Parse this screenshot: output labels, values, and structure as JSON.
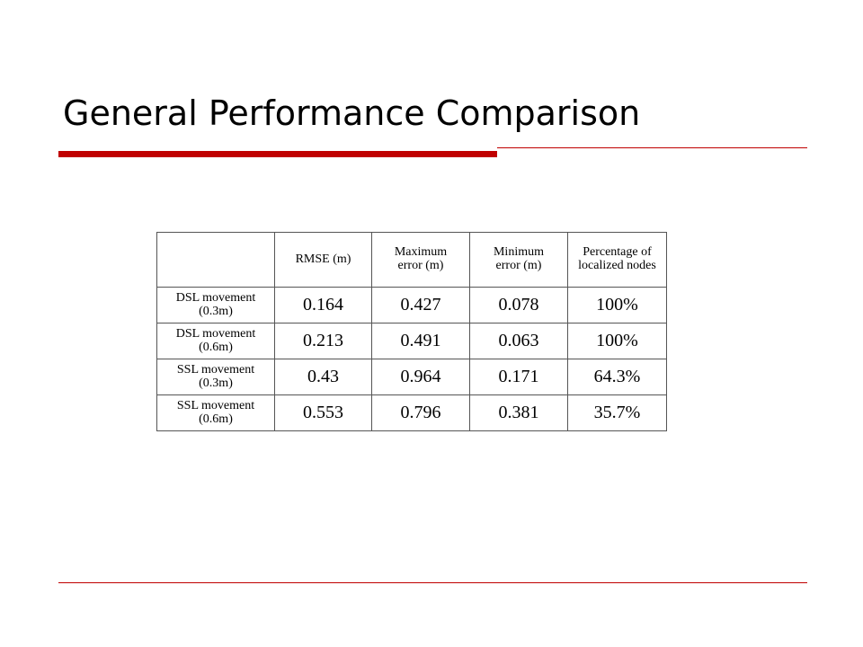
{
  "header": {
    "title": "General Performance Comparison"
  },
  "table": {
    "columns": [
      "",
      "RMSE (m)",
      "Maximum error (m)",
      "Minimum error (m)",
      "Percentage of localized nodes"
    ],
    "rows": [
      [
        "DSL movement (0.3m)",
        "0.164",
        "0.427",
        "0.078",
        "100%"
      ],
      [
        "DSL movement (0.6m)",
        "0.213",
        "0.491",
        "0.063",
        "100%"
      ],
      [
        "SSL movement (0.3m)",
        "0.43",
        "0.964",
        "0.171",
        "64.3%"
      ],
      [
        "SSL movement (0.6m)",
        "0.553",
        "0.796",
        "0.381",
        "35.7%"
      ]
    ]
  }
}
